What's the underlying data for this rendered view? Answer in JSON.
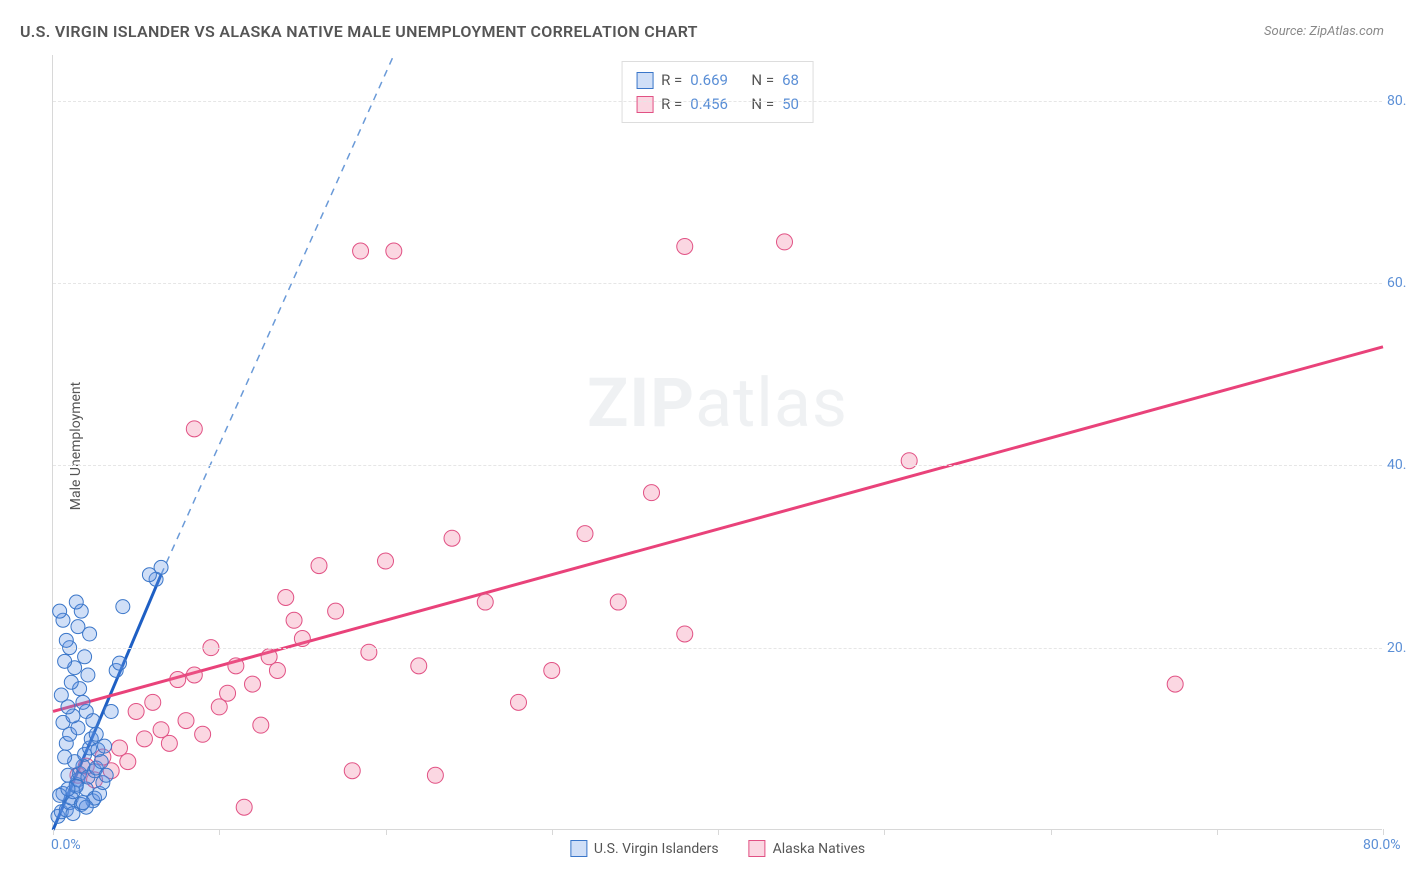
{
  "title": "U.S. VIRGIN ISLANDER VS ALASKA NATIVE MALE UNEMPLOYMENT CORRELATION CHART",
  "source": "Source: ZipAtlas.com",
  "y_axis_label": "Male Unemployment",
  "watermark_zip": "ZIP",
  "watermark_atlas": "atlas",
  "chart": {
    "type": "scatter",
    "xlim": [
      0,
      80
    ],
    "ylim": [
      0,
      85
    ],
    "x_ticks": [
      0,
      10,
      20,
      30,
      40,
      50,
      60,
      70,
      80
    ],
    "x_tick_labels": {
      "0": "0.0%",
      "80": "80.0%"
    },
    "y_ticks": [
      20,
      40,
      60,
      80
    ],
    "y_tick_labels": {
      "20": "20.0%",
      "40": "40.0%",
      "60": "60.0%",
      "80": "80.0%"
    },
    "grid_color": "#e6e6e6",
    "axis_color": "#d8d8d8",
    "background_color": "#ffffff",
    "tick_label_color": "#5b8fd6",
    "axis_label_color": "#555555"
  },
  "series": [
    {
      "name": "U.S. Virgin Islanders",
      "marker_fill": "rgba(100,150,230,0.30)",
      "marker_stroke": "#3a76c9",
      "marker_radius": 7,
      "trend_color": "#1e5fc4",
      "trend_dash_color": "#6a9ad8",
      "trend_from": [
        0,
        0
      ],
      "trend_to_solid": [
        6.5,
        28
      ],
      "trend_to_dash": [
        20.5,
        85
      ],
      "R": "0.669",
      "N": "68",
      "points": [
        [
          0.3,
          1.5
        ],
        [
          0.5,
          2.0
        ],
        [
          0.8,
          2.2
        ],
        [
          1.0,
          3.0
        ],
        [
          1.1,
          3.5
        ],
        [
          0.6,
          4.0
        ],
        [
          1.2,
          4.2
        ],
        [
          1.4,
          5.0
        ],
        [
          1.5,
          5.5
        ],
        [
          0.9,
          6.0
        ],
        [
          1.6,
          6.2
        ],
        [
          1.8,
          7.0
        ],
        [
          2.0,
          4.5
        ],
        [
          2.1,
          5.8
        ],
        [
          1.3,
          7.5
        ],
        [
          0.7,
          8.0
        ],
        [
          1.9,
          8.3
        ],
        [
          2.2,
          9.0
        ],
        [
          2.4,
          3.2
        ],
        [
          2.5,
          6.5
        ],
        [
          0.4,
          3.8
        ],
        [
          1.7,
          2.8
        ],
        [
          0.8,
          9.5
        ],
        [
          2.3,
          10.0
        ],
        [
          1.0,
          10.5
        ],
        [
          1.5,
          11.2
        ],
        [
          0.6,
          11.8
        ],
        [
          2.6,
          6.8
        ],
        [
          1.2,
          12.5
        ],
        [
          2.0,
          13.0
        ],
        [
          0.9,
          13.5
        ],
        [
          1.8,
          14.0
        ],
        [
          1.4,
          4.8
        ],
        [
          2.7,
          8.8
        ],
        [
          0.5,
          14.8
        ],
        [
          1.6,
          15.5
        ],
        [
          1.1,
          16.2
        ],
        [
          2.1,
          17.0
        ],
        [
          1.3,
          17.8
        ],
        [
          0.7,
          18.5
        ],
        [
          2.4,
          12.0
        ],
        [
          1.9,
          19.0
        ],
        [
          1.0,
          20.0
        ],
        [
          0.8,
          20.8
        ],
        [
          2.2,
          21.5
        ],
        [
          1.5,
          22.3
        ],
        [
          0.6,
          23.0
        ],
        [
          1.7,
          24.0
        ],
        [
          1.2,
          1.8
        ],
        [
          2.5,
          3.5
        ],
        [
          2.8,
          4.0
        ],
        [
          3.0,
          5.2
        ],
        [
          2.9,
          7.5
        ],
        [
          3.1,
          9.2
        ],
        [
          0.4,
          24.0
        ],
        [
          1.4,
          25.0
        ],
        [
          2.0,
          2.5
        ],
        [
          2.6,
          10.5
        ],
        [
          3.2,
          6.0
        ],
        [
          0.9,
          4.5
        ],
        [
          1.8,
          3.0
        ],
        [
          6.2,
          27.5
        ],
        [
          6.5,
          28.8
        ],
        [
          5.8,
          28.0
        ],
        [
          3.5,
          13.0
        ],
        [
          3.8,
          17.5
        ],
        [
          4.0,
          18.3
        ],
        [
          4.2,
          24.5
        ]
      ]
    },
    {
      "name": "Alaska Natives",
      "marker_fill": "rgba(240,110,150,0.28)",
      "marker_stroke": "#e15184",
      "marker_radius": 8,
      "trend_color": "#e9427a",
      "trend_from": [
        0,
        13
      ],
      "trend_to_solid": [
        80,
        53
      ],
      "R": "0.456",
      "N": "50",
      "points": [
        [
          1.5,
          6.0
        ],
        [
          2.0,
          7.0
        ],
        [
          2.5,
          5.5
        ],
        [
          3.0,
          8.0
        ],
        [
          3.5,
          6.5
        ],
        [
          4.0,
          9.0
        ],
        [
          4.5,
          7.5
        ],
        [
          5.0,
          13.0
        ],
        [
          5.5,
          10.0
        ],
        [
          6.0,
          14.0
        ],
        [
          6.5,
          11.0
        ],
        [
          7.0,
          9.5
        ],
        [
          7.5,
          16.5
        ],
        [
          8.0,
          12.0
        ],
        [
          8.5,
          17.0
        ],
        [
          9.0,
          10.5
        ],
        [
          9.5,
          20.0
        ],
        [
          10.0,
          13.5
        ],
        [
          10.5,
          15.0
        ],
        [
          11.0,
          18.0
        ],
        [
          11.5,
          2.5
        ],
        [
          12.0,
          16.0
        ],
        [
          12.5,
          11.5
        ],
        [
          13.0,
          19.0
        ],
        [
          13.5,
          17.5
        ],
        [
          14.0,
          25.5
        ],
        [
          14.5,
          23.0
        ],
        [
          15.0,
          21.0
        ],
        [
          16.0,
          29.0
        ],
        [
          17.0,
          24.0
        ],
        [
          18.0,
          6.5
        ],
        [
          19.0,
          19.5
        ],
        [
          20.0,
          29.5
        ],
        [
          22.0,
          18.0
        ],
        [
          23.0,
          6.0
        ],
        [
          24.0,
          32.0
        ],
        [
          26.0,
          25.0
        ],
        [
          28.0,
          14.0
        ],
        [
          30.0,
          17.5
        ],
        [
          32.0,
          32.5
        ],
        [
          34.0,
          25.0
        ],
        [
          36.0,
          37.0
        ],
        [
          8.5,
          44.0
        ],
        [
          38.0,
          21.5
        ],
        [
          51.5,
          40.5
        ],
        [
          18.5,
          63.5
        ],
        [
          20.5,
          63.5
        ],
        [
          38.0,
          64.0
        ],
        [
          44.0,
          64.5
        ],
        [
          67.5,
          16.0
        ]
      ]
    }
  ],
  "stat_legend_labels": {
    "R": "R =",
    "N": "N ="
  },
  "series_legend": [
    {
      "label": "U.S. Virgin Islanders",
      "fill": "rgba(100,150,230,0.30)",
      "stroke": "#3a76c9"
    },
    {
      "label": "Alaska Natives",
      "fill": "rgba(240,110,150,0.28)",
      "stroke": "#e15184"
    }
  ]
}
